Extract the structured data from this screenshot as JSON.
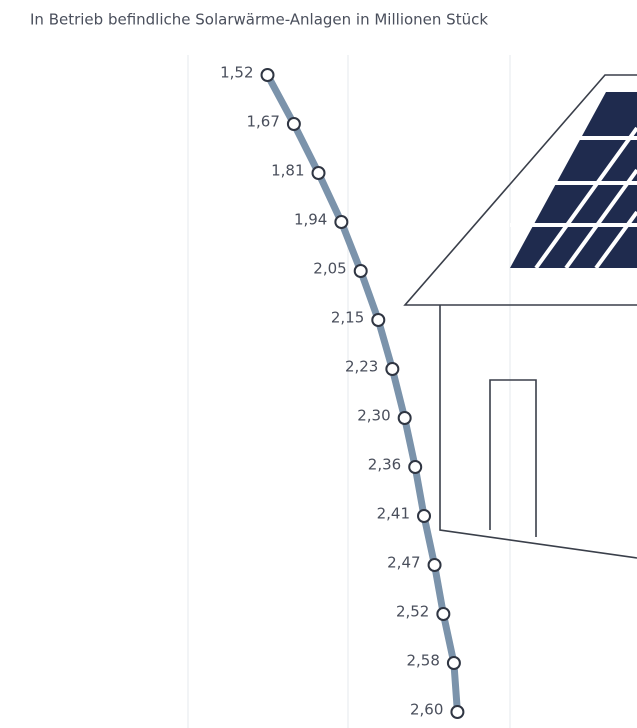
{
  "chart_data": {
    "type": "line",
    "title": "In Betrieb befindliche Solarwärme-Anlagen in Millionen Stück",
    "values": [
      1.52,
      1.67,
      1.81,
      1.94,
      2.05,
      2.15,
      2.23,
      2.3,
      2.36,
      2.41,
      2.47,
      2.52,
      2.58,
      2.6
    ],
    "value_labels": [
      "1,52",
      "1,67",
      "1,81",
      "1,94",
      "2,05",
      "2,15",
      "2,23",
      "2,30",
      "2,36",
      "2,41",
      "2,47",
      "2,52",
      "2,58",
      "2,60"
    ],
    "xlim": [
      1.5,
      2.7
    ],
    "color": "#7b93ab"
  }
}
